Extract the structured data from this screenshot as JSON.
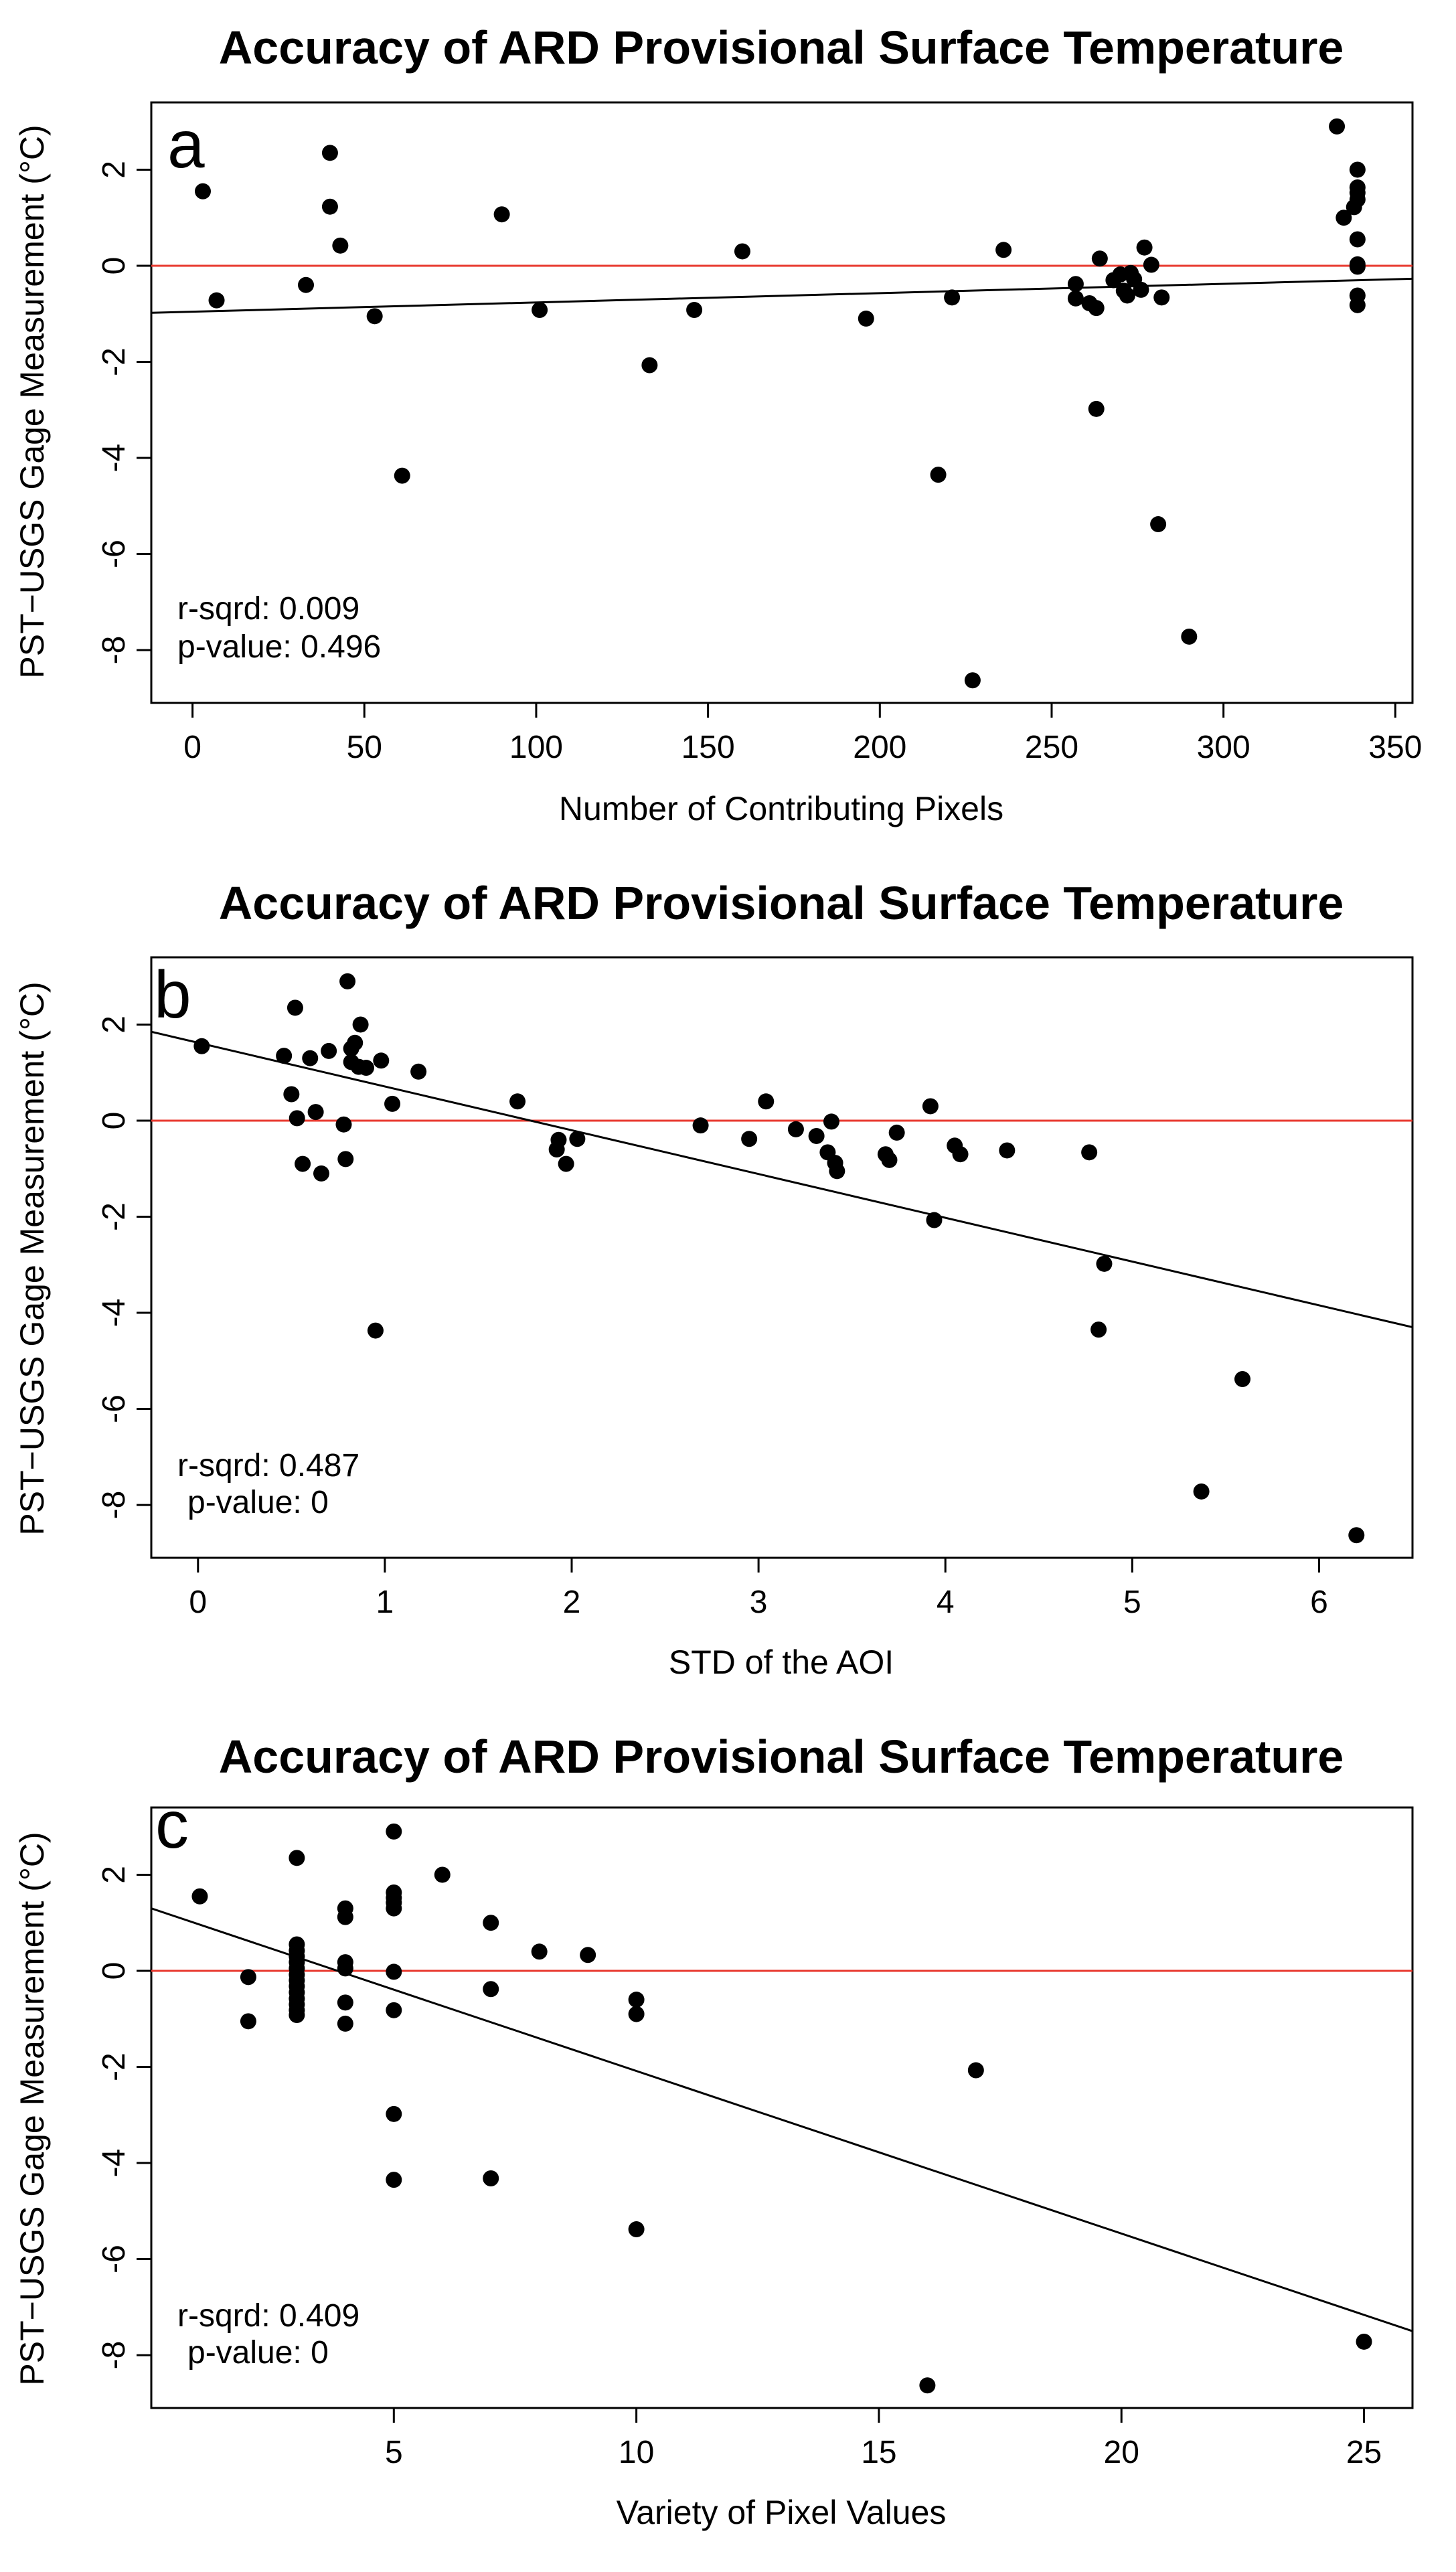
{
  "chart_data": [
    {
      "type": "scatter",
      "panel": "a",
      "title": "Accuracy of ARD Provisional Surface Temperature",
      "xlabel": "Number of Contributing Pixels",
      "ylabel": "PST−USGS Gage Measurement (°C)",
      "xlim": [
        -12,
        355
      ],
      "ylim": [
        -9.1,
        3.4
      ],
      "xticks": [
        0,
        50,
        100,
        150,
        200,
        250,
        300,
        350
      ],
      "yticks": [
        2,
        0,
        -2,
        -4,
        -6,
        -8
      ],
      "fit_line": {
        "x": [
          -12,
          355
        ],
        "y": [
          -0.98,
          -0.27
        ]
      },
      "zero_line": 0,
      "stats": {
        "r_sqrd": "r-sqrd: 0.009",
        "p_value": "p-value: 0.496"
      },
      "points": [
        [
          3,
          1.55
        ],
        [
          7,
          -0.72
        ],
        [
          33,
          -0.4
        ],
        [
          40,
          2.35
        ],
        [
          40,
          1.23
        ],
        [
          43,
          0.42
        ],
        [
          53,
          -1.05
        ],
        [
          61,
          -4.37
        ],
        [
          90,
          1.07
        ],
        [
          101,
          -0.92
        ],
        [
          133,
          -2.07
        ],
        [
          146,
          -0.92
        ],
        [
          160,
          0.3
        ],
        [
          196,
          -1.1
        ],
        [
          217,
          -4.35
        ],
        [
          221,
          -0.66
        ],
        [
          227,
          -8.63
        ],
        [
          236,
          0.33
        ],
        [
          257,
          -0.38
        ],
        [
          257,
          -0.68
        ],
        [
          261,
          -0.78
        ],
        [
          263,
          -0.88
        ],
        [
          263,
          -2.98
        ],
        [
          264,
          0.15
        ],
        [
          268,
          -0.3
        ],
        [
          270,
          -0.18
        ],
        [
          271,
          -0.52
        ],
        [
          272,
          -0.62
        ],
        [
          273,
          -0.15
        ],
        [
          274,
          -0.28
        ],
        [
          276,
          -0.5
        ],
        [
          277,
          0.38
        ],
        [
          279,
          0.02
        ],
        [
          281,
          -5.38
        ],
        [
          282,
          -0.66
        ],
        [
          290,
          -7.72
        ],
        [
          333,
          2.9
        ],
        [
          335,
          1.0
        ],
        [
          338,
          1.22
        ],
        [
          339,
          1.38
        ],
        [
          339,
          1.52
        ],
        [
          339,
          1.63
        ],
        [
          339,
          2.0
        ],
        [
          339,
          0.55
        ],
        [
          339,
          0.03
        ],
        [
          339,
          -0.02
        ],
        [
          339,
          -0.62
        ],
        [
          339,
          -0.82
        ]
      ]
    },
    {
      "type": "scatter",
      "panel": "b",
      "title": "Accuracy of ARD Provisional Surface Temperature",
      "xlabel": "STD of the AOI",
      "ylabel": "PST−USGS Gage Measurement (°C)",
      "xlim": [
        -0.25,
        6.5
      ],
      "ylim": [
        -9.1,
        3.4
      ],
      "xticks": [
        0,
        1,
        2,
        3,
        4,
        5,
        6
      ],
      "yticks": [
        2,
        0,
        -2,
        -4,
        -6,
        -8
      ],
      "fit_line": {
        "x": [
          -0.25,
          6.5
        ],
        "y": [
          1.85,
          -4.3
        ]
      },
      "zero_line": 0,
      "stats": {
        "r_sqrd": "r-sqrd: 0.487",
        "p_value": "p-value: 0"
      },
      "points": [
        [
          0.02,
          1.55
        ],
        [
          0.46,
          1.35
        ],
        [
          0.5,
          0.55
        ],
        [
          0.52,
          2.35
        ],
        [
          0.53,
          0.05
        ],
        [
          0.56,
          -0.9
        ],
        [
          0.6,
          1.3
        ],
        [
          0.63,
          0.18
        ],
        [
          0.66,
          -1.1
        ],
        [
          0.7,
          1.45
        ],
        [
          0.78,
          -0.08
        ],
        [
          0.79,
          -0.8
        ],
        [
          0.8,
          2.9
        ],
        [
          0.82,
          1.5
        ],
        [
          0.82,
          1.22
        ],
        [
          0.84,
          1.62
        ],
        [
          0.86,
          1.12
        ],
        [
          0.87,
          2.0
        ],
        [
          0.9,
          1.1
        ],
        [
          0.95,
          -4.37
        ],
        [
          0.98,
          1.25
        ],
        [
          1.04,
          0.35
        ],
        [
          1.18,
          1.02
        ],
        [
          1.71,
          0.4
        ],
        [
          1.92,
          -0.6
        ],
        [
          1.93,
          -0.4
        ],
        [
          1.97,
          -0.9
        ],
        [
          2.03,
          -0.38
        ],
        [
          2.69,
          -0.1
        ],
        [
          2.95,
          -0.38
        ],
        [
          3.04,
          0.4
        ],
        [
          3.2,
          -0.18
        ],
        [
          3.31,
          -0.32
        ],
        [
          3.37,
          -0.66
        ],
        [
          3.39,
          -0.02
        ],
        [
          3.41,
          -0.88
        ],
        [
          3.42,
          -1.05
        ],
        [
          3.68,
          -0.7
        ],
        [
          3.7,
          -0.82
        ],
        [
          3.74,
          -0.25
        ],
        [
          3.92,
          0.3
        ],
        [
          3.94,
          -2.07
        ],
        [
          4.05,
          -0.52
        ],
        [
          4.08,
          -0.7
        ],
        [
          4.33,
          -0.62
        ],
        [
          4.77,
          -0.66
        ],
        [
          4.82,
          -4.35
        ],
        [
          4.85,
          -2.98
        ],
        [
          5.37,
          -7.72
        ],
        [
          5.59,
          -5.38
        ],
        [
          6.2,
          -8.63
        ]
      ]
    },
    {
      "type": "scatter",
      "panel": "c",
      "title": "Accuracy of ARD Provisional Surface Temperature",
      "xlabel": "Variety of Pixel Values",
      "ylabel": "PST−USGS Gage Measurement (°C)",
      "xlim": [
        0,
        26
      ],
      "ylim": [
        -9.1,
        3.4
      ],
      "xticks": [
        5,
        10,
        15,
        20,
        25
      ],
      "yticks": [
        2,
        0,
        -2,
        -4,
        -6,
        -8
      ],
      "fit_line": {
        "x": [
          0,
          26
        ],
        "y": [
          1.3,
          -7.5
        ]
      },
      "zero_line": 0,
      "stats": {
        "r_sqrd": "r-sqrd: 0.409",
        "p_value": "p-value: 0"
      },
      "points": [
        [
          1,
          1.55
        ],
        [
          2,
          -0.13
        ],
        [
          2,
          -1.05
        ],
        [
          3,
          2.35
        ],
        [
          3,
          0.55
        ],
        [
          3,
          0.42
        ],
        [
          3,
          0.3
        ],
        [
          3,
          0.18
        ],
        [
          3,
          0.05
        ],
        [
          3,
          -0.08
        ],
        [
          3,
          -0.2
        ],
        [
          3,
          -0.32
        ],
        [
          3,
          -0.45
        ],
        [
          3,
          -0.58
        ],
        [
          3,
          -0.7
        ],
        [
          3,
          -0.82
        ],
        [
          3,
          -0.92
        ],
        [
          4,
          1.3
        ],
        [
          4,
          1.12
        ],
        [
          4,
          0.18
        ],
        [
          4,
          0.05
        ],
        [
          4,
          -0.66
        ],
        [
          4,
          -1.1
        ],
        [
          5,
          2.9
        ],
        [
          5,
          1.63
        ],
        [
          5,
          1.52
        ],
        [
          5,
          1.42
        ],
        [
          5,
          1.3
        ],
        [
          5,
          -0.02
        ],
        [
          5,
          -0.82
        ],
        [
          5,
          -2.98
        ],
        [
          5,
          -4.35
        ],
        [
          6,
          2.0
        ],
        [
          7,
          1.0
        ],
        [
          7,
          -0.38
        ],
        [
          7,
          -4.32
        ],
        [
          8,
          0.4
        ],
        [
          9,
          0.33
        ],
        [
          10,
          -0.6
        ],
        [
          10,
          -0.9
        ],
        [
          10,
          -5.38
        ],
        [
          16,
          -8.63
        ],
        [
          17,
          -2.07
        ],
        [
          25,
          -7.72
        ]
      ]
    }
  ]
}
